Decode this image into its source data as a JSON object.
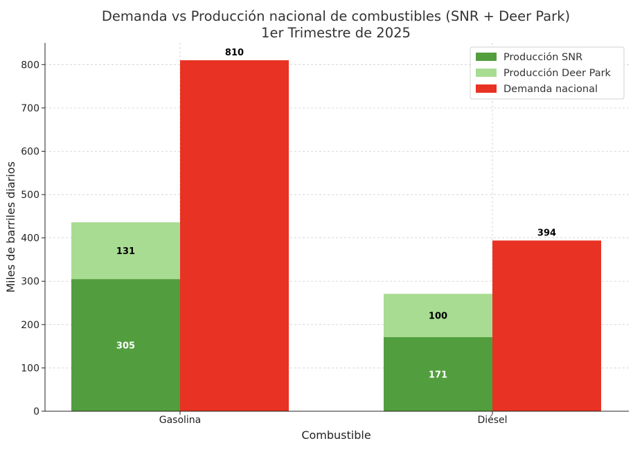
{
  "chart_data": {
    "type": "bar",
    "stacked_with_grouped": true,
    "title": "Demanda vs Producción nacional de combustibles (SNR + Deer Park)",
    "subtitle": "1er Trimestre de 2025",
    "xlabel": "Combustible",
    "ylabel": "Miles de barriles diarios",
    "categories": [
      "Gasolina",
      "Diésel"
    ],
    "ylim": [
      0,
      850
    ],
    "yticks": [
      0,
      100,
      200,
      300,
      400,
      500,
      600,
      700,
      800
    ],
    "grid": true,
    "legend_position": "top-right",
    "series": [
      {
        "name": "Producción SNR",
        "values": [
          305,
          171
        ],
        "color": "#529e3e",
        "stack": "produccion",
        "label_color": "#ffffff"
      },
      {
        "name": "Producción Deer Park",
        "values": [
          131,
          100
        ],
        "color": "#a8dc92",
        "stack": "produccion",
        "label_color": "#000000"
      },
      {
        "name": "Demanda nacional",
        "values": [
          810,
          394
        ],
        "color": "#e83223",
        "stack": "demanda",
        "label_color": "#000000"
      }
    ]
  }
}
